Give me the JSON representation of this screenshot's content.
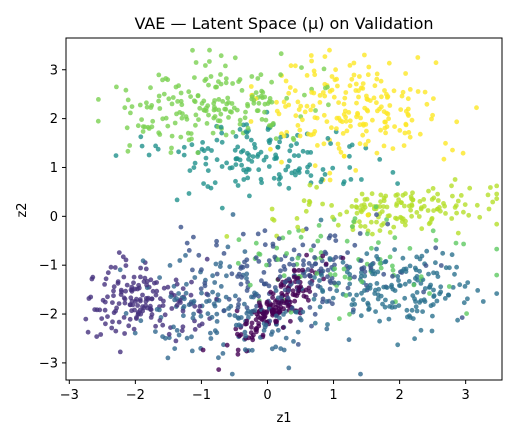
{
  "chart_data": {
    "type": "scatter",
    "title": "VAE — Latent Space (μ) on Validation",
    "xlabel": "z1",
    "ylabel": "z2",
    "xlim": [
      -3.05,
      3.55
    ],
    "ylim": [
      -3.35,
      3.65
    ],
    "x_ticks": [
      -3,
      -2,
      -1,
      0,
      1,
      2,
      3
    ],
    "y_ticks": [
      -3,
      -2,
      -1,
      0,
      1,
      2,
      3
    ],
    "x_tick_labels": [
      "−3",
      "−2",
      "−1",
      "0",
      "1",
      "2",
      "3"
    ],
    "y_tick_labels": [
      "−3",
      "−2",
      "−1",
      "0",
      "1",
      "2",
      "3"
    ],
    "grid": false,
    "legend": "none",
    "colormap": "viridis",
    "marker_alpha": 0.8,
    "clusters": [
      {
        "color": "#7ad151",
        "cx": -0.9,
        "cy": 2.25,
        "sx": 0.75,
        "sy": 0.45,
        "angle": 10,
        "n": 190
      },
      {
        "color": "#fde725",
        "cx": 1.2,
        "cy": 2.2,
        "sx": 0.65,
        "sy": 0.55,
        "angle": -15,
        "n": 200
      },
      {
        "color": "#21918c",
        "cx": -0.2,
        "cy": 1.2,
        "sx": 0.85,
        "sy": 0.35,
        "angle": -10,
        "n": 150
      },
      {
        "color": "#b5de2b",
        "cx": 2.0,
        "cy": 0.15,
        "sx": 0.8,
        "sy": 0.22,
        "angle": 5,
        "n": 150
      },
      {
        "color": "#3b528b",
        "cx": 0.4,
        "cy": -1.1,
        "sx": 0.9,
        "sy": 0.45,
        "angle": 0,
        "n": 170
      },
      {
        "color": "#5ec962",
        "cx": 1.2,
        "cy": -0.9,
        "sx": 1.0,
        "sy": 0.45,
        "angle": 0,
        "n": 80
      },
      {
        "color": "#2c728e",
        "cx": 1.9,
        "cy": -1.5,
        "sx": 0.55,
        "sy": 0.4,
        "angle": 0,
        "n": 170
      },
      {
        "color": "#46327e",
        "cx": -1.9,
        "cy": -1.75,
        "sx": 0.45,
        "sy": 0.35,
        "angle": -20,
        "n": 160
      },
      {
        "color": "#31688e",
        "cx": -0.6,
        "cy": -1.9,
        "sx": 0.75,
        "sy": 0.5,
        "angle": -15,
        "n": 160
      },
      {
        "color": "#440154",
        "cx": 0.15,
        "cy": -1.85,
        "sx": 0.15,
        "sy": 0.5,
        "angle": -38,
        "n": 170
      }
    ]
  }
}
